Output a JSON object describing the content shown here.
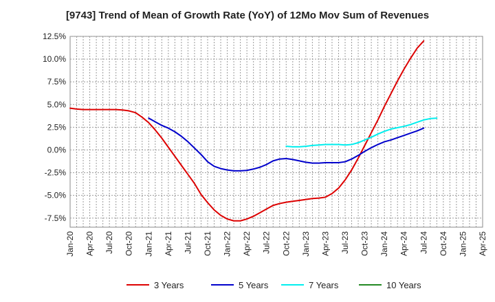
{
  "chart_data": {
    "type": "line",
    "title": "[9743]  Trend of Mean of Growth Rate (YoY) of 12Mo Mov Sum of Revenues",
    "xlabel": "",
    "ylabel": "",
    "ylim": [
      -8.5,
      12.5
    ],
    "y_ticks": [
      -7.5,
      -5.0,
      -2.5,
      0.0,
      2.5,
      5.0,
      7.5,
      10.0,
      12.5
    ],
    "y_tick_labels": [
      "-7.5%",
      "-5.0%",
      "-2.5%",
      "0.0%",
      "2.5%",
      "5.0%",
      "7.5%",
      "10.0%",
      "12.5%"
    ],
    "x_tick_labels": [
      "Jan-20",
      "Apr-20",
      "Jul-20",
      "Oct-20",
      "Jan-21",
      "Apr-21",
      "Jul-21",
      "Oct-21",
      "Jan-22",
      "Apr-22",
      "Jul-22",
      "Oct-22",
      "Jan-23",
      "Apr-23",
      "Jul-23",
      "Oct-23",
      "Jan-24",
      "Apr-24",
      "Jul-24",
      "Oct-24",
      "Jan-25",
      "Apr-25"
    ],
    "grid": true,
    "legend_position": "bottom",
    "series": [
      {
        "name": "3 Years",
        "color": "#dd0000",
        "x": [
          0,
          1,
          2,
          3,
          4,
          5,
          6,
          7,
          8,
          9,
          10,
          11,
          12,
          13,
          14,
          15,
          16,
          17,
          18,
          19,
          20,
          21,
          22,
          23,
          24,
          25,
          26,
          27,
          28,
          29,
          30,
          31,
          32,
          33,
          34,
          35,
          36,
          37,
          38,
          39,
          40,
          41,
          42,
          43,
          44,
          45,
          46,
          47,
          48,
          49,
          50,
          51,
          52,
          53,
          54,
          55,
          56,
          57,
          58,
          59,
          60
        ],
        "values": [
          4.6,
          4.5,
          4.45,
          4.45,
          4.45,
          4.45,
          4.45,
          4.45,
          4.4,
          4.3,
          4.1,
          3.6,
          3.0,
          2.2,
          1.3,
          0.3,
          -0.7,
          -1.7,
          -2.7,
          -3.7,
          -4.9,
          -5.8,
          -6.6,
          -7.2,
          -7.6,
          -7.8,
          -7.8,
          -7.6,
          -7.3,
          -6.9,
          -6.5,
          -6.1,
          -5.9,
          -5.75,
          -5.65,
          -5.55,
          -5.45,
          -5.35,
          -5.3,
          -5.2,
          -4.8,
          -4.2,
          -3.3,
          -2.2,
          -0.9,
          0.5,
          1.9,
          3.3,
          4.8,
          6.2,
          7.6,
          8.9,
          10.1,
          11.2,
          12.0,
          null,
          null,
          null,
          null,
          null,
          null
        ]
      },
      {
        "name": "5 Years",
        "color": "#0000cc",
        "x": [
          0,
          1,
          2,
          3,
          4,
          5,
          6,
          7,
          8,
          9,
          10,
          11,
          12,
          13,
          14,
          15,
          16,
          17,
          18,
          19,
          20,
          21,
          22,
          23,
          24,
          25,
          26,
          27,
          28,
          29,
          30,
          31,
          32,
          33,
          34,
          35,
          36,
          37,
          38,
          39,
          40,
          41,
          42,
          43,
          44,
          45,
          46,
          47,
          48,
          49,
          50,
          51,
          52,
          53,
          54,
          55,
          56,
          57,
          58,
          59,
          60
        ],
        "values": [
          null,
          null,
          null,
          null,
          null,
          null,
          null,
          null,
          null,
          null,
          null,
          null,
          3.5,
          3.1,
          2.7,
          2.4,
          2.0,
          1.5,
          0.9,
          0.2,
          -0.5,
          -1.3,
          -1.8,
          -2.05,
          -2.2,
          -2.3,
          -2.3,
          -2.25,
          -2.1,
          -1.9,
          -1.6,
          -1.2,
          -1.0,
          -0.95,
          -1.05,
          -1.2,
          -1.35,
          -1.45,
          -1.45,
          -1.4,
          -1.4,
          -1.4,
          -1.3,
          -1.0,
          -0.6,
          -0.15,
          0.25,
          0.6,
          0.9,
          1.1,
          1.35,
          1.6,
          1.85,
          2.1,
          2.4,
          null,
          null,
          null,
          null,
          null,
          null
        ]
      },
      {
        "name": "7 Years",
        "color": "#00eeee",
        "x": [
          0,
          1,
          2,
          3,
          4,
          5,
          6,
          7,
          8,
          9,
          10,
          11,
          12,
          13,
          14,
          15,
          16,
          17,
          18,
          19,
          20,
          21,
          22,
          23,
          24,
          25,
          26,
          27,
          28,
          29,
          30,
          31,
          32,
          33,
          34,
          35,
          36,
          37,
          38,
          39,
          40,
          41,
          42,
          43,
          44,
          45,
          46,
          47,
          48,
          49,
          50,
          51,
          52,
          53,
          54,
          55,
          56,
          57,
          58,
          59,
          60
        ],
        "values": [
          null,
          null,
          null,
          null,
          null,
          null,
          null,
          null,
          null,
          null,
          null,
          null,
          null,
          null,
          null,
          null,
          null,
          null,
          null,
          null,
          null,
          null,
          null,
          null,
          null,
          null,
          null,
          null,
          null,
          null,
          null,
          null,
          null,
          0.4,
          0.35,
          0.35,
          0.4,
          0.5,
          0.55,
          0.6,
          0.6,
          0.6,
          0.55,
          0.6,
          0.8,
          1.1,
          1.4,
          1.75,
          2.05,
          2.3,
          2.45,
          2.6,
          2.8,
          3.05,
          3.3,
          3.45,
          3.5,
          null,
          null,
          null,
          null
        ]
      },
      {
        "name": "10 Years",
        "color": "#228822",
        "x": [],
        "values": []
      }
    ]
  }
}
